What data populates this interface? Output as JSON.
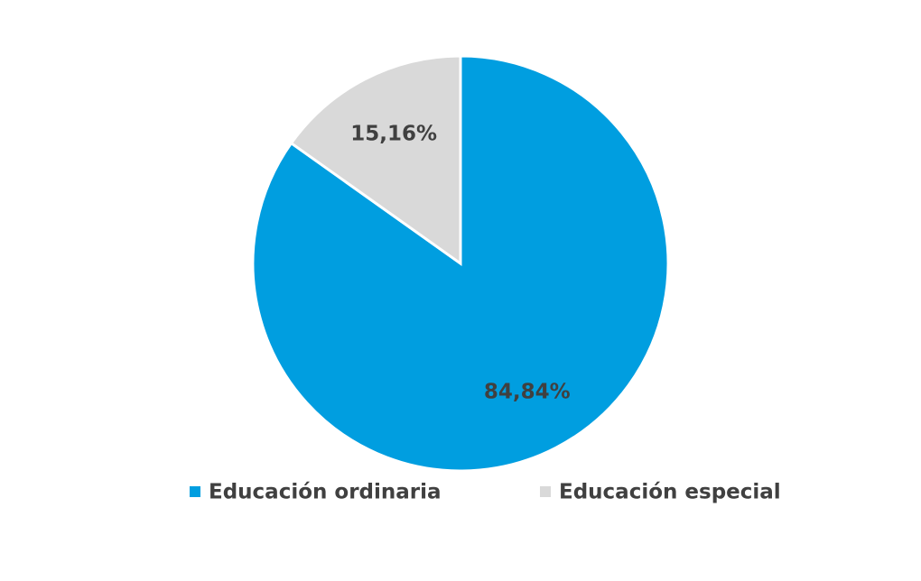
{
  "chart_data": {
    "type": "pie",
    "categories": [
      "Educación ordinaria",
      "Educación especial"
    ],
    "values": [
      84.84,
      15.16
    ],
    "value_labels": [
      "84,84%",
      "15,16%"
    ],
    "colors": [
      "#009ee0",
      "#d9d9d9"
    ]
  }
}
